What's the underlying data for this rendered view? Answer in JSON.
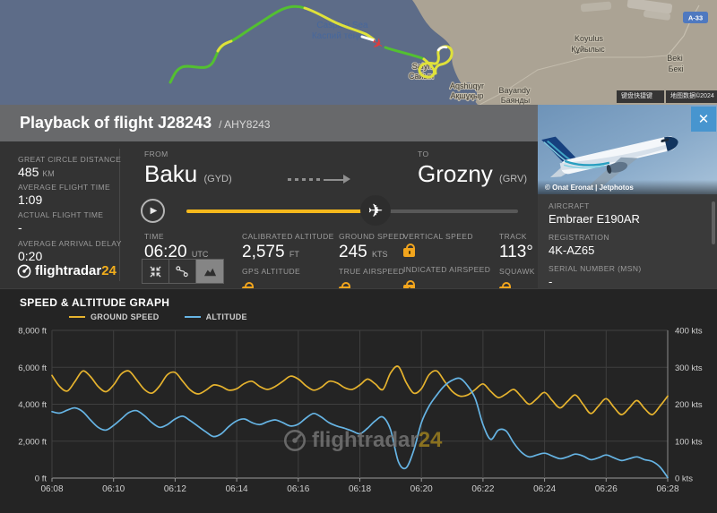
{
  "map": {
    "sea_label_line1": "Caspian Sea",
    "sea_label_line2": "Каспий теңізі",
    "places": [
      {
        "latin": "Saiyn",
        "cyrillic": "Сайын"
      },
      {
        "latin": "Aqshuqyr",
        "cyrillic": "Ақшұқыр"
      },
      {
        "latin": "Bayandy",
        "cyrillic": "Баянды"
      },
      {
        "latin": "Koyulus",
        "cyrillic": "Құйылыс"
      },
      {
        "latin": "Beki",
        "cyrillic": "Бекі"
      }
    ],
    "road_badge": "A-33",
    "attribution": {
      "shortcuts": "键盘快捷键",
      "mapdata": "地图数据©2024"
    },
    "trail_colors": {
      "green": "#53c031",
      "yellow": "#dfe13a",
      "white": "#ffffff"
    },
    "plane_color": "#e23b3b"
  },
  "header": {
    "title": "Playback of flight J28243",
    "subtitle": "/ AHY8243"
  },
  "stats": [
    {
      "label": "GREAT CIRCLE DISTANCE",
      "value": "485",
      "unit": "KM"
    },
    {
      "label": "AVERAGE FLIGHT TIME",
      "value": "1:09",
      "unit": ""
    },
    {
      "label": "ACTUAL FLIGHT TIME",
      "value": "-",
      "unit": ""
    },
    {
      "label": "AVERAGE ARRIVAL DELAY",
      "value": "0:20",
      "unit": ""
    }
  ],
  "logo": {
    "brand": "flightradar",
    "suffix": "24"
  },
  "route": {
    "from_label": "FROM",
    "from_city": "Baku",
    "from_code": "(GYD)",
    "to_label": "TO",
    "to_city": "Grozny",
    "to_code": "(GRV)"
  },
  "icons": {
    "play": "▶",
    "plane": "✈",
    "close": "✕"
  },
  "telemetry": {
    "time_label": "TIME",
    "time_value": "06:20",
    "time_unit": "UTC",
    "calt_label": "CALIBRATED ALTITUDE",
    "calt_value": "2,575",
    "calt_unit": "FT",
    "gps_label": "GPS ALTITUDE",
    "gs_label": "GROUND SPEED",
    "gs_value": "245",
    "gs_unit": "KTS",
    "tas_label": "TRUE AIRSPEED",
    "vs_label": "VERTICAL SPEED",
    "ias_label": "INDICATED AIRSPEED",
    "track_label": "TRACK",
    "track_value": "113°",
    "squawk_label": "SQUAWK"
  },
  "aircraft_panel": {
    "photo_credit": "© Onat Eronat | Jetphotos",
    "aircraft_label": "AIRCRAFT",
    "aircraft": "Embraer E190AR",
    "registration_label": "REGISTRATION",
    "registration": "4K-AZ65",
    "msn_label": "SERIAL NUMBER (MSN)",
    "msn": "-"
  },
  "chart_data": {
    "type": "line",
    "title": "SPEED & ALTITUDE GRAPH",
    "x_start": "06:08",
    "x_end": "06:28",
    "dt_minutes": 0.25,
    "duration_minutes": 20,
    "x_tick_labels": [
      "06:08",
      "06:10",
      "06:12",
      "06:14",
      "06:16",
      "06:18",
      "06:20",
      "06:22",
      "06:24",
      "06:26",
      "06:28"
    ],
    "ylim_left": [
      0,
      8000
    ],
    "ylim_right": [
      0,
      400
    ],
    "y_left_tick_labels": [
      "8,000 ft",
      "6,000 ft",
      "4,000 ft",
      "2,000 ft",
      "0 ft"
    ],
    "y_right_tick_labels": [
      "400 kts",
      "300 kts",
      "200 kts",
      "100 kts",
      "0 kts"
    ],
    "grid": true,
    "legend_position": "top-left",
    "series": [
      {
        "name": "GROUND SPEED",
        "axis": "right",
        "unit": "kts",
        "color": "#e6b32e",
        "values": [
          278,
          248,
          236,
          262,
          290,
          275,
          248,
          234,
          252,
          282,
          290,
          266,
          240,
          230,
          250,
          280,
          286,
          262,
          238,
          228,
          238,
          252,
          248,
          238,
          242,
          256,
          262,
          248,
          240,
          248,
          262,
          276,
          268,
          250,
          238,
          246,
          262,
          258,
          245,
          240,
          252,
          268,
          255,
          240,
          285,
          302,
          260,
          230,
          242,
          280,
          290,
          262,
          235,
          222,
          225,
          240,
          255,
          235,
          218,
          228,
          240,
          220,
          200,
          215,
          232,
          210,
          190,
          208,
          225,
          200,
          175,
          195,
          215,
          192,
          172,
          190,
          210,
          188,
          172,
          195,
          222
        ]
      },
      {
        "name": "ALTITUDE",
        "axis": "left",
        "unit": "ft",
        "color": "#66b4e4",
        "values": [
          3600,
          3520,
          3680,
          3800,
          3600,
          3150,
          2750,
          2600,
          2850,
          3200,
          3550,
          3650,
          3380,
          3000,
          2750,
          2900,
          3200,
          3350,
          3100,
          2800,
          2500,
          2250,
          2400,
          2800,
          3100,
          3200,
          3000,
          2900,
          3050,
          3150,
          3000,
          2820,
          2920,
          3250,
          3500,
          3300,
          3000,
          2820,
          2700,
          2550,
          2400,
          2700,
          3100,
          3300,
          2600,
          900,
          550,
          1500,
          3000,
          3900,
          4500,
          5000,
          5300,
          5400,
          5000,
          4300,
          2900,
          2100,
          2600,
          2550,
          1900,
          1400,
          1150,
          1250,
          1350,
          1200,
          1050,
          1150,
          1300,
          1200,
          1000,
          1100,
          1250,
          1100,
          950,
          1050,
          1150,
          1000,
          900,
          600,
          30
        ]
      }
    ]
  }
}
